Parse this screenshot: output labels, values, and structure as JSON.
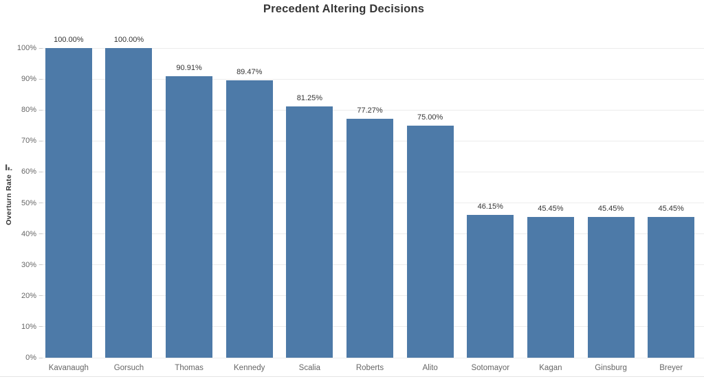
{
  "chart_data": {
    "type": "bar",
    "title": "Precedent Altering Decisions",
    "xlabel": "",
    "ylabel": "Overturn Rate",
    "categories": [
      "Kavanaugh",
      "Gorsuch",
      "Thomas",
      "Kennedy",
      "Scalia",
      "Roberts",
      "Alito",
      "Sotomayor",
      "Kagan",
      "Ginsburg",
      "Breyer"
    ],
    "values": [
      100.0,
      100.0,
      90.91,
      89.47,
      81.25,
      77.27,
      75.0,
      46.15,
      45.45,
      45.45,
      45.45
    ],
    "value_labels": [
      "100.00%",
      "100.00%",
      "90.91%",
      "89.47%",
      "81.25%",
      "77.27%",
      "75.00%",
      "46.15%",
      "45.45%",
      "45.45%",
      "45.45%"
    ],
    "ylim": [
      0,
      100
    ],
    "ytick_step": 10,
    "ytick_labels": [
      "0%",
      "10%",
      "20%",
      "30%",
      "40%",
      "50%",
      "60%",
      "70%",
      "80%",
      "90%",
      "100%"
    ],
    "grid": true,
    "legend": "none",
    "y_axis_sort_indicator": "descending-bars-icon"
  },
  "colors": {
    "bar": "#4d7aa8",
    "title_text": "#363636",
    "tick_text": "#666666",
    "label_text": "#333333",
    "gridline": "#ececec",
    "icon": "#4f4f4f"
  }
}
